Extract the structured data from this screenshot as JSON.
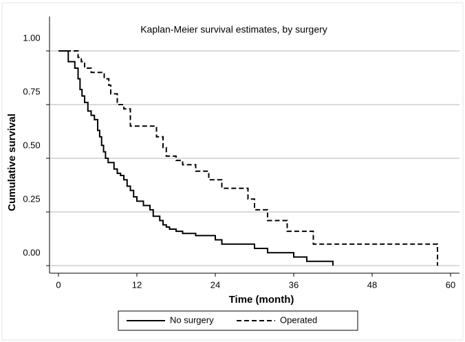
{
  "chart_data": {
    "type": "step",
    "title": "Kaplan-Meier survival estimates, by surgery",
    "x_label": "Time (month)",
    "y_label": "Cumulative survival",
    "xlim": [
      0,
      60
    ],
    "xticks": [
      0,
      12,
      24,
      36,
      48,
      60
    ],
    "ylim": [
      0,
      1
    ],
    "yticks": [
      {
        "value": 0,
        "label": "0.00"
      },
      {
        "value": 0.25,
        "label": "0.25"
      },
      {
        "value": 0.5,
        "label": "0.50"
      },
      {
        "value": 0.75,
        "label": "0.75"
      },
      {
        "value": 1,
        "label": "1.00"
      }
    ],
    "grid": true,
    "legend": "bottom",
    "series": [
      {
        "name": "No surgery",
        "color": "#000000",
        "dash": "solid",
        "x": [
          0,
          1.5,
          2.5,
          3,
          3.3,
          3.6,
          4,
          4.5,
          5,
          5.5,
          6,
          6.3,
          6.6,
          6.9,
          7.2,
          7.6,
          8.5,
          9,
          9.5,
          10,
          10.5,
          11,
          11.5,
          12,
          13,
          14,
          14.5,
          15.5,
          16,
          16.5,
          17,
          18,
          19,
          21,
          24,
          25,
          30,
          32,
          36,
          38,
          42
        ],
        "values": [
          1.0,
          0.95,
          0.92,
          0.87,
          0.82,
          0.79,
          0.76,
          0.72,
          0.7,
          0.68,
          0.63,
          0.6,
          0.56,
          0.53,
          0.5,
          0.48,
          0.45,
          0.43,
          0.42,
          0.4,
          0.37,
          0.35,
          0.32,
          0.3,
          0.28,
          0.26,
          0.23,
          0.21,
          0.19,
          0.18,
          0.17,
          0.16,
          0.15,
          0.14,
          0.12,
          0.1,
          0.08,
          0.06,
          0.04,
          0.02,
          0.0
        ]
      },
      {
        "name": "Operated",
        "color": "#000000",
        "dash": "dashed",
        "x": [
          0,
          3,
          3.5,
          4,
          5,
          7,
          7.7,
          8,
          9,
          10,
          11,
          15,
          16,
          16.5,
          18,
          19,
          21,
          23,
          25,
          29,
          30,
          32,
          35,
          39,
          58
        ],
        "values": [
          1.0,
          0.97,
          0.95,
          0.92,
          0.9,
          0.87,
          0.84,
          0.8,
          0.75,
          0.73,
          0.65,
          0.6,
          0.55,
          0.51,
          0.49,
          0.47,
          0.44,
          0.4,
          0.36,
          0.31,
          0.26,
          0.21,
          0.16,
          0.1,
          0.0
        ]
      }
    ]
  }
}
